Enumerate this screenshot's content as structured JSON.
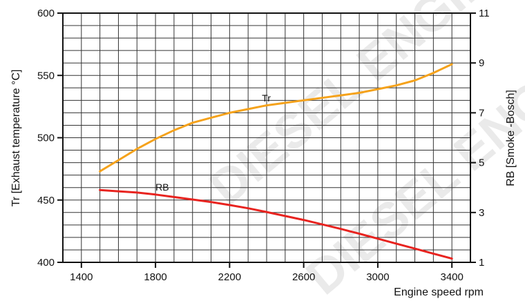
{
  "watermark": {
    "line1": "DIESEL ENGINE",
    "line2": "DIESEL ENGINE"
  },
  "chart_data": {
    "type": "line",
    "x_axis": {
      "label": "Engine speed rpm",
      "range": [
        1300,
        3500
      ],
      "ticks": [
        1400,
        1800,
        2200,
        2600,
        3000,
        3400
      ]
    },
    "y_axis_left": {
      "label": "Tr [Exhaust temperature °C]",
      "range": [
        400,
        600
      ],
      "ticks": [
        400,
        450,
        500,
        550,
        600
      ]
    },
    "y_axis_right": {
      "label": "RB [Smoke -Bosch]",
      "range": [
        1,
        11
      ],
      "ticks": [
        1,
        3,
        5,
        7,
        9,
        11
      ]
    },
    "grid": true,
    "series": [
      {
        "name": "Tr",
        "axis": "left",
        "color": "#f5a21b",
        "x": [
          1500,
          1600,
          1700,
          1800,
          1900,
          2000,
          2100,
          2200,
          2300,
          2400,
          2500,
          2600,
          2700,
          2800,
          2900,
          3000,
          3100,
          3200,
          3300,
          3400
        ],
        "y": [
          473,
          482,
          491,
          499,
          506,
          512,
          516,
          520,
          523,
          526,
          528,
          530,
          532,
          534,
          536,
          539,
          542,
          546,
          552,
          559
        ]
      },
      {
        "name": "RB",
        "axis": "right",
        "color": "#e8231f",
        "x": [
          1500,
          1600,
          1700,
          1800,
          1900,
          2000,
          2100,
          2200,
          2300,
          2400,
          2500,
          2600,
          2700,
          2800,
          2900,
          3000,
          3100,
          3200,
          3300,
          3400
        ],
        "y": [
          3.9,
          3.85,
          3.8,
          3.72,
          3.62,
          3.52,
          3.42,
          3.3,
          3.17,
          3.02,
          2.86,
          2.7,
          2.52,
          2.34,
          2.15,
          1.95,
          1.75,
          1.55,
          1.35,
          1.15
        ]
      }
    ]
  }
}
